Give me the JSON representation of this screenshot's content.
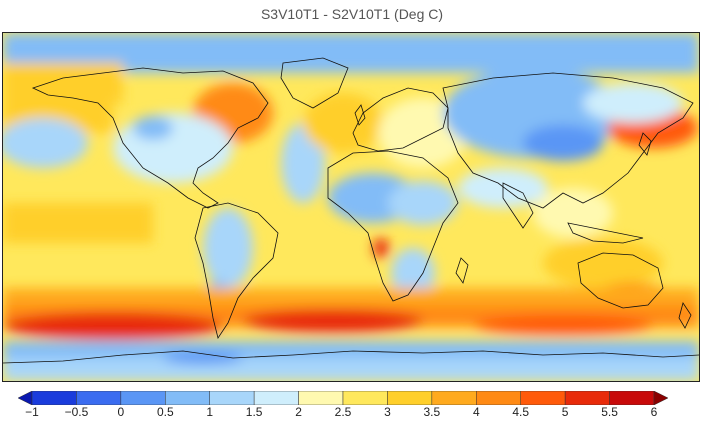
{
  "title": "S3V10T1 - S2V10T1 (Deg C)",
  "colorbar": {
    "ticks": [
      "−1",
      "−0.5",
      "0",
      "0.5",
      "1",
      "1.5",
      "2",
      "2.5",
      "3",
      "3.5",
      "4",
      "4.5",
      "5",
      "5.5",
      "6"
    ],
    "colors": [
      "#1a3cdc",
      "#3a6cf0",
      "#5a96f5",
      "#82bcf7",
      "#a8d6fa",
      "#cfeefc",
      "#fff9b0",
      "#ffe85c",
      "#ffcf2a",
      "#ffaa1e",
      "#ff8a14",
      "#ff5a0a",
      "#e82b0a",
      "#c80a0a"
    ]
  }
}
